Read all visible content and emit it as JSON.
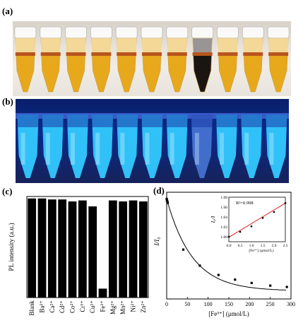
{
  "panels": {
    "a": {
      "label": "(a)"
    },
    "b": {
      "label": "(b)"
    },
    "c": {
      "label": "(c)"
    },
    "d": {
      "label": "(d)"
    }
  },
  "photo_a": {
    "tube_count": 11,
    "dark_tube_index": 7,
    "tube_color": "#e7a81c",
    "dark_tube_color": "#1b1512",
    "band_color": "#b8551e"
  },
  "photo_b": {
    "tube_count": 11,
    "glow_color": "#33c9ff",
    "dim_tube_index": 7
  },
  "chart_data": [
    {
      "type": "bar",
      "ylabel": "PL intensity (a.u.)",
      "categories": [
        "Blank",
        "Ba²⁺",
        "Ca²⁺",
        "Cd²⁺",
        "Co²⁺",
        "Cr³⁺",
        "Cu²⁺",
        "Fe³⁺",
        "Mg²⁺",
        "Mn²⁺",
        "Ni²⁺",
        "Zn²⁺"
      ],
      "values": [
        1.0,
        1.0,
        0.99,
        0.99,
        0.97,
        0.98,
        0.92,
        0.09,
        0.98,
        0.97,
        0.98,
        0.97
      ],
      "ylim": [
        0,
        1.02
      ],
      "bar_color": "#000000"
    },
    {
      "type": "scatter",
      "xlabel": "[Fe³⁺] (μmol/L)",
      "ylabel": "I/I₀",
      "x_ticks": [
        "0",
        "50",
        "100",
        "150",
        "200",
        "250",
        "300"
      ],
      "xlim": [
        0,
        300
      ],
      "ylim": [
        0.25,
        1.05
      ],
      "points": [
        {
          "x": 0,
          "y": 1.0
        },
        {
          "x": 0.5,
          "y": 0.99
        },
        {
          "x": 1,
          "y": 0.985
        },
        {
          "x": 1.5,
          "y": 0.98
        },
        {
          "x": 2,
          "y": 0.975
        },
        {
          "x": 2.5,
          "y": 0.97
        },
        {
          "x": 40,
          "y": 0.62
        },
        {
          "x": 80,
          "y": 0.5
        },
        {
          "x": 125,
          "y": 0.43
        },
        {
          "x": 165,
          "y": 0.395
        },
        {
          "x": 205,
          "y": 0.37
        },
        {
          "x": 250,
          "y": 0.35
        },
        {
          "x": 290,
          "y": 0.34
        }
      ],
      "fit_curve": true,
      "inset": {
        "type": "scatter",
        "xlabel": "[Fe³⁺] (μmol/L)",
        "ylabel": "I₀/I",
        "annotation": "R²=0.998",
        "x_ticks": [
          "0.0",
          "0.5",
          "1.0",
          "1.5",
          "2.0",
          "2.5"
        ],
        "y_ticks": [
          "1.00",
          "1.02",
          "1.04",
          "1.06",
          "1.08"
        ],
        "xlim": [
          0,
          2.5
        ],
        "ylim": [
          0.99,
          1.08
        ],
        "points": [
          {
            "x": 0,
            "y": 1.0
          },
          {
            "x": 0.5,
            "y": 1.01
          },
          {
            "x": 1.0,
            "y": 1.021
          },
          {
            "x": 1.5,
            "y": 1.038
          },
          {
            "x": 2.0,
            "y": 1.05
          },
          {
            "x": 2.5,
            "y": 1.068
          }
        ],
        "fit_color": "#d62020"
      }
    }
  ]
}
